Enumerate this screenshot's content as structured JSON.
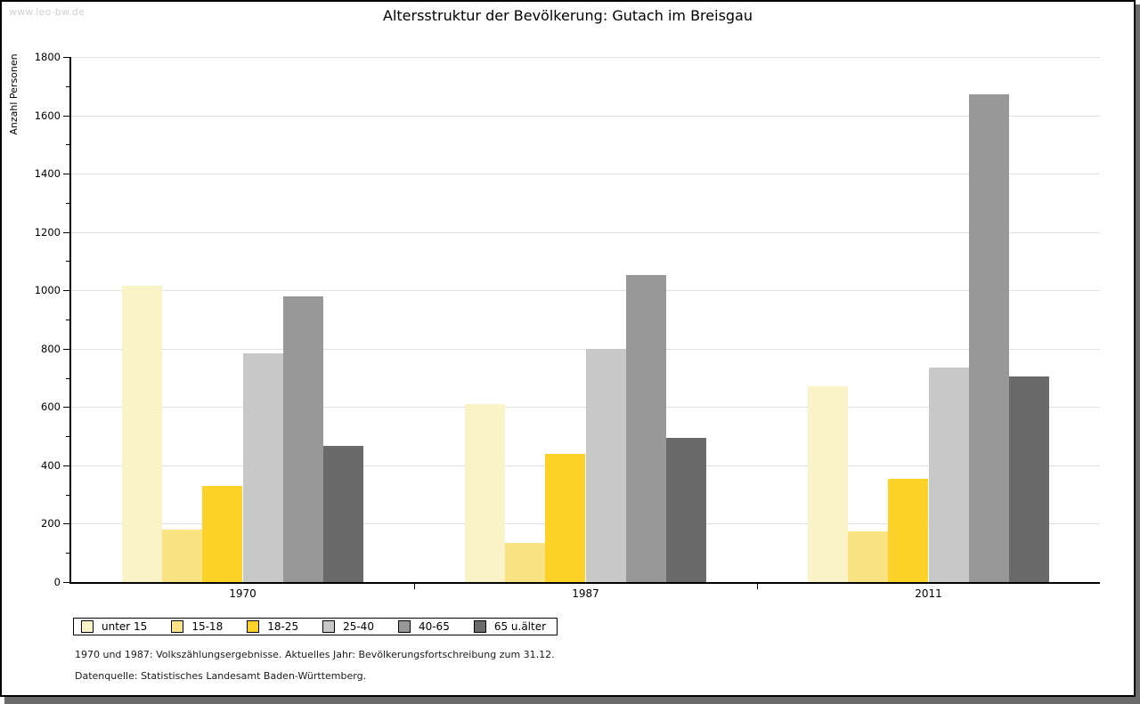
{
  "watermark": "www.leo-bw.de",
  "title": "Altersstruktur der Bevölkerung: Gutach im Breisgau",
  "chart_data": {
    "type": "bar",
    "title": "Altersstruktur der Bevölkerung: Gutach im Breisgau",
    "xlabel": "",
    "ylabel": "Anzahl Personen",
    "ylim": [
      0,
      1800
    ],
    "ytick_step": 200,
    "ytick_minor_step": 100,
    "grid": true,
    "legend_position": "bottom-left",
    "categories": [
      "1970",
      "1987",
      "2011"
    ],
    "series": [
      {
        "name": "unter 15",
        "color": "#faf3c8",
        "values": [
          1015,
          610,
          672
        ]
      },
      {
        "name": "15-18",
        "color": "#fae382",
        "values": [
          180,
          133,
          175
        ]
      },
      {
        "name": "18-25",
        "color": "#fcd228",
        "values": [
          330,
          440,
          355
        ]
      },
      {
        "name": "25-40",
        "color": "#c8c8c8",
        "values": [
          785,
          800,
          735
        ]
      },
      {
        "name": "40-65",
        "color": "#989898",
        "values": [
          978,
          1052,
          1671
        ]
      },
      {
        "name": "65 u.älter",
        "color": "#6a6a6a",
        "values": [
          468,
          493,
          706
        ]
      }
    ]
  },
  "footnotes": {
    "line1": "1970 und 1987: Volkszählungsergebnisse. Aktuelles Jahr: Bevölkerungsfortschreibung zum 31.12.",
    "line2": "Datenquelle: Statistisches Landesamt Baden-Württemberg."
  }
}
